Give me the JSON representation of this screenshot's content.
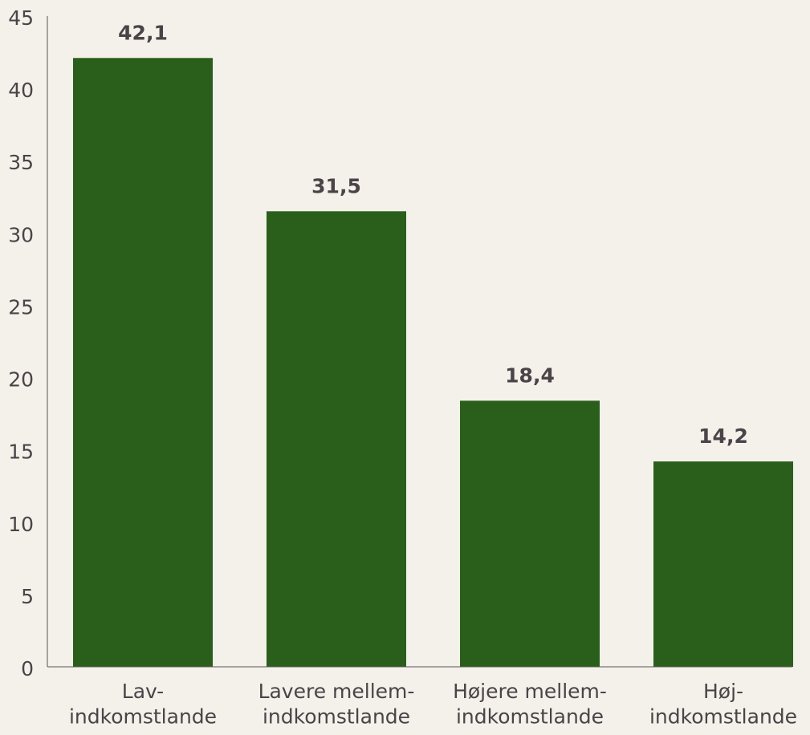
{
  "chart_data": {
    "type": "bar",
    "categories": [
      "Lav-\nindkomstlande",
      "Lavere mellem-\nindkomstlande",
      "Højere mellem-\nindkomstlande",
      "Høj-\nindkomstlande"
    ],
    "values": [
      42.1,
      31.5,
      18.4,
      14.2
    ],
    "value_labels": [
      "42,1",
      "31,5",
      "18,4",
      "14,2"
    ],
    "color": "#2a5f1b",
    "ylim": [
      0,
      45
    ],
    "yticks": [
      0,
      5,
      10,
      15,
      20,
      25,
      30,
      35,
      40,
      45
    ],
    "grid": false
  }
}
